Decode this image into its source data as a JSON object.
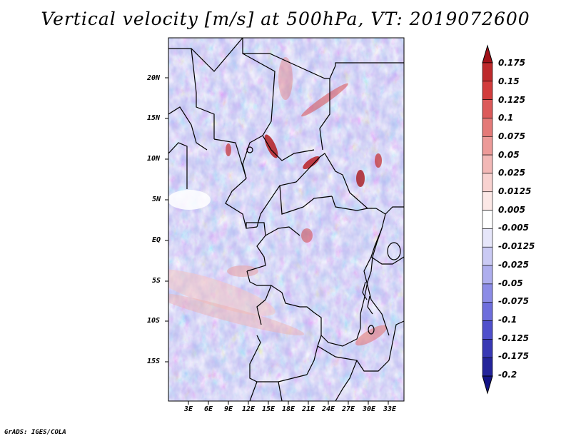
{
  "title": "Vertical velocity [m/s] at 500hPa, VT: 2019072600",
  "footer": "GrADS: IGES/COLA",
  "latitude_labels": [
    "20N",
    "15N",
    "10N",
    "5N",
    "EQ",
    "5S",
    "10S",
    "15S"
  ],
  "longitude_labels": [
    "3E",
    "6E",
    "9E",
    "12E",
    "15E",
    "18E",
    "21E",
    "24E",
    "27E",
    "30E",
    "33E"
  ],
  "colorbar": {
    "labels": [
      "0.175",
      "0.15",
      "0.125",
      "0.1",
      "0.075",
      "0.05",
      "0.025",
      "0.0125",
      "0.005",
      "-0.005",
      "-0.0125",
      "-0.025",
      "-0.05",
      "-0.075",
      "-0.1",
      "-0.125",
      "-0.175",
      "-0.2"
    ],
    "colors": [
      "#a01218",
      "#be2a2c",
      "#d23c3c",
      "#dc5a5a",
      "#e47a78",
      "#ec9a98",
      "#f2b8b6",
      "#f8d2d0",
      "#fce8e6",
      "#ffffff",
      "#e6e6fa",
      "#cacaf4",
      "#aeaeee",
      "#8c8ce6",
      "#6e6edc",
      "#5050cc",
      "#3838b4",
      "#24249a",
      "#141486"
    ]
  },
  "colors": {
    "positive_accent": "#c83232",
    "negative_accent": "#5a5ad2",
    "border": "#000000"
  }
}
